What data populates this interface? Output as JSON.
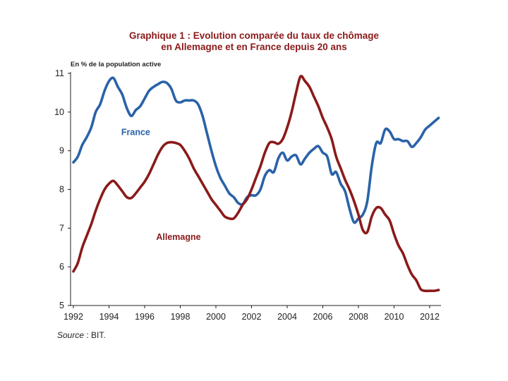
{
  "chart_data": {
    "type": "line",
    "title_line1": "Graphique 1 : Evolution comparée du taux de chômage",
    "title_line2": "en Allemagne et en France depuis 20 ans",
    "ylabel": "En % de la population active",
    "xlabel": "",
    "xlim": [
      1992,
      2012.7
    ],
    "ylim": [
      5,
      11
    ],
    "x_ticks": [
      1992,
      1994,
      1996,
      1998,
      2000,
      2002,
      2004,
      2006,
      2008,
      2010,
      2012
    ],
    "y_ticks": [
      5,
      6,
      7,
      8,
      9,
      10,
      11
    ],
    "grid": false,
    "legend": "inline labels",
    "source_prefix": "Source",
    "source_text": " : BIT.",
    "series": [
      {
        "name": "France",
        "color": "#2a62a8",
        "label_at": [
          1995.5,
          9.4
        ],
        "points": [
          [
            1992.0,
            8.7
          ],
          [
            1992.25,
            8.85
          ],
          [
            1992.5,
            9.15
          ],
          [
            1992.75,
            9.35
          ],
          [
            1993.0,
            9.6
          ],
          [
            1993.25,
            10.0
          ],
          [
            1993.5,
            10.2
          ],
          [
            1993.75,
            10.55
          ],
          [
            1994.0,
            10.8
          ],
          [
            1994.25,
            10.88
          ],
          [
            1994.5,
            10.65
          ],
          [
            1994.75,
            10.45
          ],
          [
            1995.0,
            10.1
          ],
          [
            1995.25,
            9.9
          ],
          [
            1995.5,
            10.05
          ],
          [
            1995.75,
            10.15
          ],
          [
            1996.0,
            10.35
          ],
          [
            1996.25,
            10.55
          ],
          [
            1996.5,
            10.65
          ],
          [
            1996.75,
            10.72
          ],
          [
            1997.0,
            10.78
          ],
          [
            1997.25,
            10.75
          ],
          [
            1997.5,
            10.6
          ],
          [
            1997.75,
            10.3
          ],
          [
            1998.0,
            10.25
          ],
          [
            1998.25,
            10.3
          ],
          [
            1998.5,
            10.3
          ],
          [
            1998.75,
            10.3
          ],
          [
            1999.0,
            10.2
          ],
          [
            1999.25,
            9.9
          ],
          [
            1999.5,
            9.45
          ],
          [
            1999.75,
            9.0
          ],
          [
            2000.0,
            8.6
          ],
          [
            2000.25,
            8.3
          ],
          [
            2000.5,
            8.1
          ],
          [
            2000.75,
            7.9
          ],
          [
            2001.0,
            7.8
          ],
          [
            2001.25,
            7.65
          ],
          [
            2001.5,
            7.62
          ],
          [
            2001.75,
            7.8
          ],
          [
            2002.0,
            7.85
          ],
          [
            2002.25,
            7.85
          ],
          [
            2002.5,
            8.0
          ],
          [
            2002.75,
            8.35
          ],
          [
            2003.0,
            8.5
          ],
          [
            2003.25,
            8.45
          ],
          [
            2003.5,
            8.8
          ],
          [
            2003.75,
            8.95
          ],
          [
            2004.0,
            8.75
          ],
          [
            2004.25,
            8.85
          ],
          [
            2004.5,
            8.88
          ],
          [
            2004.75,
            8.65
          ],
          [
            2005.0,
            8.8
          ],
          [
            2005.25,
            8.95
          ],
          [
            2005.5,
            9.05
          ],
          [
            2005.75,
            9.12
          ],
          [
            2006.0,
            8.95
          ],
          [
            2006.25,
            8.85
          ],
          [
            2006.5,
            8.4
          ],
          [
            2006.75,
            8.45
          ],
          [
            2007.0,
            8.15
          ],
          [
            2007.25,
            7.95
          ],
          [
            2007.5,
            7.5
          ],
          [
            2007.75,
            7.15
          ],
          [
            2008.0,
            7.25
          ],
          [
            2008.25,
            7.35
          ],
          [
            2008.5,
            7.7
          ],
          [
            2008.75,
            8.6
          ],
          [
            2009.0,
            9.2
          ],
          [
            2009.25,
            9.2
          ],
          [
            2009.5,
            9.55
          ],
          [
            2009.75,
            9.5
          ],
          [
            2010.0,
            9.3
          ],
          [
            2010.25,
            9.3
          ],
          [
            2010.5,
            9.25
          ],
          [
            2010.75,
            9.25
          ],
          [
            2011.0,
            9.1
          ],
          [
            2011.25,
            9.2
          ],
          [
            2011.5,
            9.35
          ],
          [
            2011.75,
            9.55
          ],
          [
            2012.0,
            9.65
          ],
          [
            2012.25,
            9.75
          ],
          [
            2012.5,
            9.85
          ]
        ]
      },
      {
        "name": "Allemagne",
        "color": "#8b1a1a",
        "label_at": [
          1997.9,
          6.7
        ],
        "points": [
          [
            1992.0,
            5.88
          ],
          [
            1992.25,
            6.1
          ],
          [
            1992.5,
            6.5
          ],
          [
            1992.75,
            6.8
          ],
          [
            1993.0,
            7.1
          ],
          [
            1993.25,
            7.45
          ],
          [
            1993.5,
            7.75
          ],
          [
            1993.75,
            8.0
          ],
          [
            1994.0,
            8.15
          ],
          [
            1994.25,
            8.22
          ],
          [
            1994.5,
            8.1
          ],
          [
            1994.75,
            7.95
          ],
          [
            1995.0,
            7.8
          ],
          [
            1995.25,
            7.78
          ],
          [
            1995.5,
            7.9
          ],
          [
            1995.75,
            8.05
          ],
          [
            1996.0,
            8.2
          ],
          [
            1996.25,
            8.4
          ],
          [
            1996.5,
            8.65
          ],
          [
            1996.75,
            8.9
          ],
          [
            1997.0,
            9.1
          ],
          [
            1997.25,
            9.2
          ],
          [
            1997.5,
            9.22
          ],
          [
            1997.75,
            9.2
          ],
          [
            1998.0,
            9.15
          ],
          [
            1998.25,
            9.0
          ],
          [
            1998.5,
            8.8
          ],
          [
            1998.75,
            8.55
          ],
          [
            1999.0,
            8.35
          ],
          [
            1999.25,
            8.15
          ],
          [
            1999.5,
            7.95
          ],
          [
            1999.75,
            7.75
          ],
          [
            2000.0,
            7.6
          ],
          [
            2000.25,
            7.45
          ],
          [
            2000.5,
            7.3
          ],
          [
            2000.75,
            7.25
          ],
          [
            2001.0,
            7.25
          ],
          [
            2001.25,
            7.4
          ],
          [
            2001.5,
            7.6
          ],
          [
            2001.75,
            7.75
          ],
          [
            2002.0,
            8.0
          ],
          [
            2002.25,
            8.3
          ],
          [
            2002.5,
            8.6
          ],
          [
            2002.75,
            8.95
          ],
          [
            2003.0,
            9.2
          ],
          [
            2003.25,
            9.22
          ],
          [
            2003.5,
            9.18
          ],
          [
            2003.75,
            9.3
          ],
          [
            2004.0,
            9.6
          ],
          [
            2004.25,
            10.0
          ],
          [
            2004.5,
            10.5
          ],
          [
            2004.75,
            10.92
          ],
          [
            2005.0,
            10.8
          ],
          [
            2005.25,
            10.65
          ],
          [
            2005.5,
            10.4
          ],
          [
            2005.75,
            10.15
          ],
          [
            2006.0,
            9.85
          ],
          [
            2006.25,
            9.6
          ],
          [
            2006.5,
            9.3
          ],
          [
            2006.75,
            8.85
          ],
          [
            2007.0,
            8.55
          ],
          [
            2007.25,
            8.25
          ],
          [
            2007.5,
            8.0
          ],
          [
            2007.75,
            7.7
          ],
          [
            2008.0,
            7.35
          ],
          [
            2008.25,
            6.95
          ],
          [
            2008.5,
            6.9
          ],
          [
            2008.75,
            7.3
          ],
          [
            2009.0,
            7.52
          ],
          [
            2009.25,
            7.52
          ],
          [
            2009.5,
            7.35
          ],
          [
            2009.75,
            7.2
          ],
          [
            2010.0,
            6.85
          ],
          [
            2010.25,
            6.55
          ],
          [
            2010.5,
            6.35
          ],
          [
            2010.75,
            6.05
          ],
          [
            2011.0,
            5.8
          ],
          [
            2011.25,
            5.65
          ],
          [
            2011.5,
            5.42
          ],
          [
            2011.75,
            5.38
          ],
          [
            2012.0,
            5.38
          ],
          [
            2012.25,
            5.38
          ],
          [
            2012.5,
            5.4
          ]
        ]
      }
    ]
  }
}
